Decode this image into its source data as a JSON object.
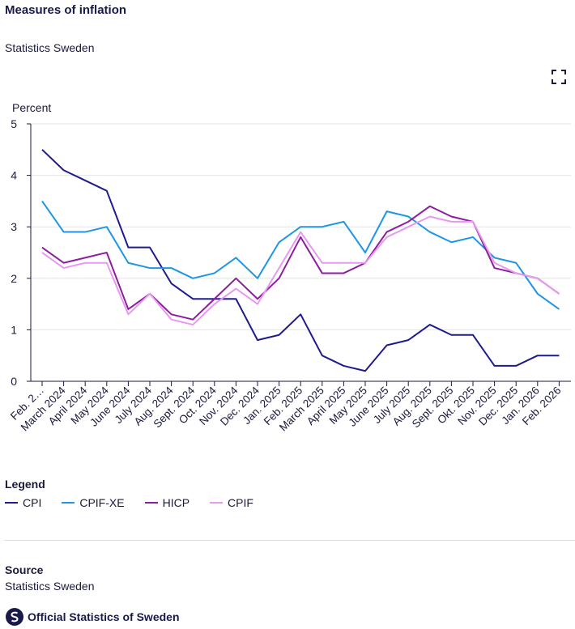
{
  "header": {
    "title": "Measures of inflation",
    "subtitle": "Statistics Sweden"
  },
  "chart_data": {
    "type": "line",
    "ylabel": "Percent",
    "xlabel": "",
    "ylim": [
      0,
      5
    ],
    "yticks": [
      0,
      1,
      2,
      3,
      4,
      5
    ],
    "grid": true,
    "legend_position": "bottom-left",
    "categories": [
      "Feb. 2…",
      "March 2024",
      "April 2024",
      "May 2024",
      "June 2024",
      "July 2024",
      "Aug. 2024",
      "Sept. 2024",
      "Oct. 2024",
      "Nov. 2024",
      "Dec. 2024",
      "Jan. 2025",
      "Feb. 2025",
      "March 2025",
      "April 2025",
      "May 2025",
      "June 2025",
      "July 2025",
      "Aug. 2025",
      "Sept. 2025",
      "Okt. 2025",
      "Nov. 2025",
      "Dec. 2025",
      "Jan. 2026",
      "Feb. 2026"
    ],
    "series": [
      {
        "name": "CPI",
        "color": "#1e1b8f",
        "values": [
          4.5,
          4.1,
          3.9,
          3.7,
          2.6,
          2.6,
          1.9,
          1.6,
          1.6,
          1.6,
          0.8,
          0.9,
          1.3,
          0.5,
          0.3,
          0.2,
          0.7,
          0.8,
          1.1,
          0.9,
          0.9,
          0.3,
          0.3,
          0.5,
          0.5
        ]
      },
      {
        "name": "CPIF-XE",
        "color": "#1e96e6",
        "values": [
          3.5,
          2.9,
          2.9,
          3.0,
          2.3,
          2.2,
          2.2,
          2.0,
          2.1,
          2.4,
          2.0,
          2.7,
          3.0,
          3.0,
          3.1,
          2.5,
          3.3,
          3.2,
          2.9,
          2.7,
          2.8,
          2.4,
          2.3,
          1.7,
          1.4
        ]
      },
      {
        "name": "HICP",
        "color": "#8c1e9e",
        "values": [
          2.6,
          2.3,
          2.4,
          2.5,
          1.4,
          1.7,
          1.3,
          1.2,
          1.6,
          2.0,
          1.6,
          2.0,
          2.8,
          2.1,
          2.1,
          2.3,
          2.9,
          3.1,
          3.4,
          3.2,
          3.1,
          2.2,
          2.1,
          2.0,
          1.7
        ]
      },
      {
        "name": "CPIF",
        "color": "#e699f0",
        "values": [
          2.5,
          2.2,
          2.3,
          2.3,
          1.3,
          1.7,
          1.2,
          1.1,
          1.5,
          1.8,
          1.5,
          2.2,
          2.9,
          2.3,
          2.3,
          2.3,
          2.8,
          3.0,
          3.2,
          3.1,
          3.1,
          2.3,
          2.1,
          2.0,
          1.7
        ]
      }
    ]
  },
  "legend": {
    "title": "Legend",
    "items": [
      "CPI",
      "CPIF-XE",
      "HICP",
      "CPIF"
    ]
  },
  "source": {
    "title": "Source",
    "text": "Statistics Sweden"
  },
  "logo": {
    "text": "Official Statistics of Sweden"
  },
  "icons": {
    "expand": "fullscreen-icon",
    "logo": "official-statistics-logo-icon"
  }
}
